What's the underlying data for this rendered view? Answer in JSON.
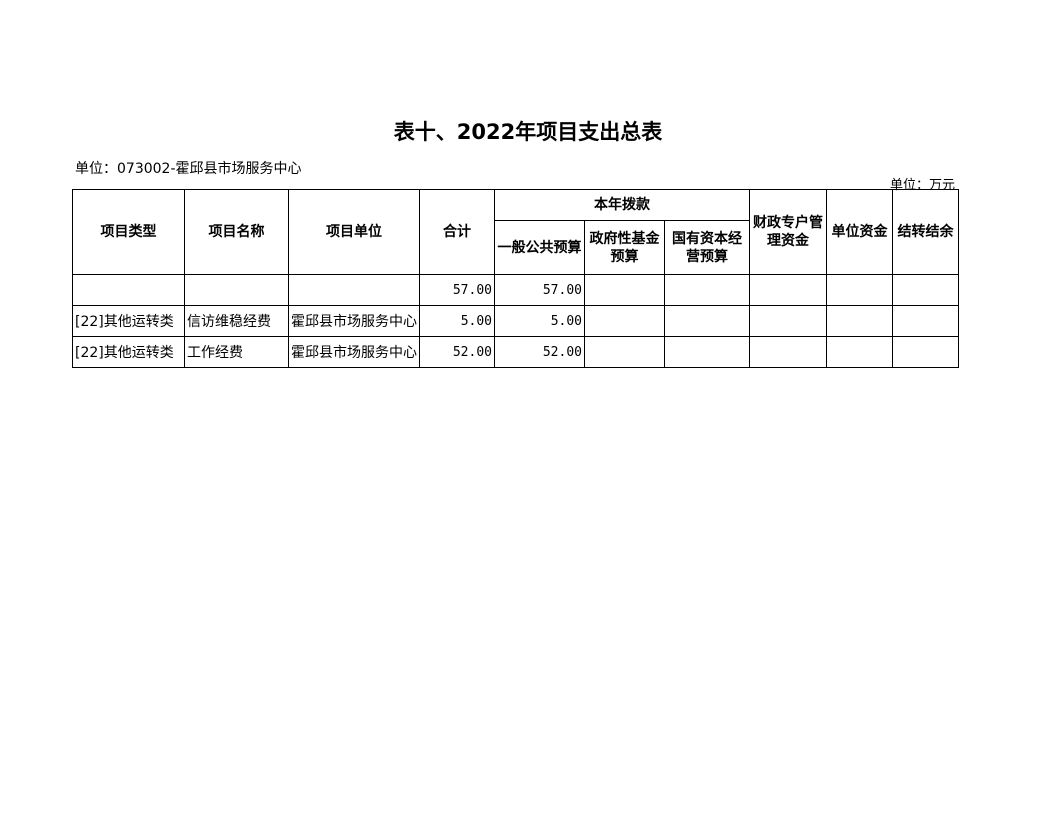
{
  "title": "表十、2022年项目支出总表",
  "unit_label": "单位：073002-霍邱县市场服务中心",
  "currency_unit": "单位：万元",
  "headers": {
    "type": "项目类型",
    "name": "项目名称",
    "unit": "项目单位",
    "total": "合计",
    "appropriation": "本年拨款",
    "general": "一般公共预算",
    "gov_fund": "政府性基金预算",
    "state_capital": "国有资本经营预算",
    "fiscal_special": "财政专户管理资金",
    "unit_funds": "单位资金",
    "carryover": "结转结余"
  },
  "rows": [
    {
      "type": "",
      "name": "",
      "unit": "",
      "total": "57.00",
      "general": "57.00",
      "gov_fund": "",
      "state_capital": "",
      "fiscal_special": "",
      "unit_funds": "",
      "carryover": ""
    },
    {
      "type": "[22]其他运转类",
      "name": "信访维稳经费",
      "unit": "霍邱县市场服务中心",
      "total": "5.00",
      "general": "5.00",
      "gov_fund": "",
      "state_capital": "",
      "fiscal_special": "",
      "unit_funds": "",
      "carryover": ""
    },
    {
      "type": "[22]其他运转类",
      "name": "工作经费",
      "unit": "霍邱县市场服务中心",
      "total": "52.00",
      "general": "52.00",
      "gov_fund": "",
      "state_capital": "",
      "fiscal_special": "",
      "unit_funds": "",
      "carryover": ""
    }
  ]
}
